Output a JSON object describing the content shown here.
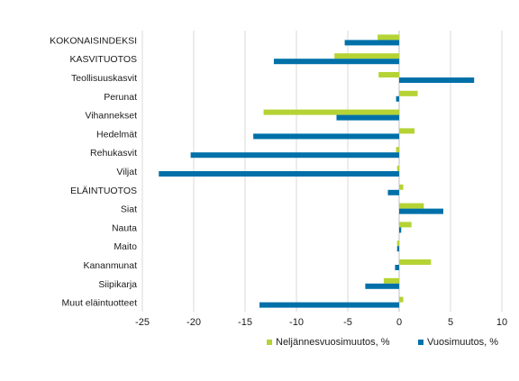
{
  "chart_data": {
    "type": "bar",
    "orientation": "horizontal",
    "categories": [
      "KOKONAISINDEKSI",
      "KASVITUOTOS",
      "Teollisuuskasvit",
      "Perunat",
      "Vihannekset",
      "Hedelmät",
      "Rehukasvit",
      "Viljat",
      "ELÄINTUOTOS",
      "Siat",
      "Nauta",
      "Maito",
      "Kananmunat",
      "Siipikarja",
      "Muut eläintuotteet"
    ],
    "series": [
      {
        "name": "Neljännesvuosimuutos, %",
        "color": "#b5d334",
        "values": [
          -2.1,
          -6.3,
          -2.0,
          1.8,
          -13.2,
          1.5,
          -0.3,
          -0.2,
          0.4,
          2.4,
          1.2,
          -0.2,
          3.1,
          -1.5,
          0.4
        ]
      },
      {
        "name": "Vuosimuutos, %",
        "color": "#0070a8",
        "values": [
          -5.3,
          -12.2,
          7.3,
          -0.3,
          -6.1,
          -14.2,
          -20.3,
          -23.4,
          -1.1,
          4.3,
          0.2,
          -0.2,
          -0.4,
          -3.3,
          -13.6
        ]
      }
    ],
    "x_ticks": [
      "-25",
      "-20",
      "-15",
      "-10",
      "-5",
      "0",
      "5",
      "10"
    ],
    "xlim": [
      -25,
      10
    ],
    "grid": true,
    "legend_position": "bottom-right",
    "title": "",
    "xlabel": "",
    "ylabel": ""
  }
}
